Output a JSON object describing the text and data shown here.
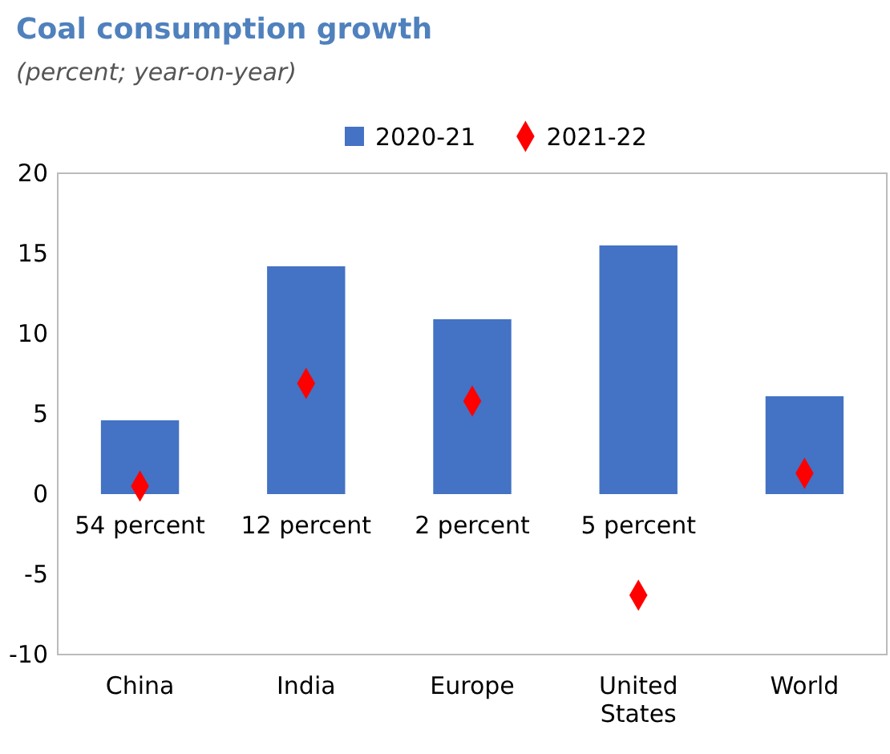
{
  "chart_data": {
    "type": "bar",
    "title": "Coal consumption growth",
    "subtitle": "(percent; year-on-year)",
    "categories": [
      "China",
      "India",
      "Europe",
      "United States",
      "World"
    ],
    "series": [
      {
        "name": "2020-21",
        "color": "#4472c4",
        "values": [
          4.6,
          14.2,
          10.9,
          15.5,
          6.1
        ]
      },
      {
        "name": "2021-22",
        "type": "scatter",
        "color": "#ff0000",
        "marker": "diamond",
        "values": [
          0.5,
          6.9,
          5.8,
          -6.3,
          1.3
        ]
      }
    ],
    "ylim": [
      -10,
      20
    ],
    "yticks": [
      -10,
      -5,
      0,
      5,
      10,
      15,
      20
    ],
    "grid": false,
    "legend": "top",
    "annotations": [
      "54 percent",
      "12 percent",
      "2 percent",
      "5 percent"
    ]
  }
}
